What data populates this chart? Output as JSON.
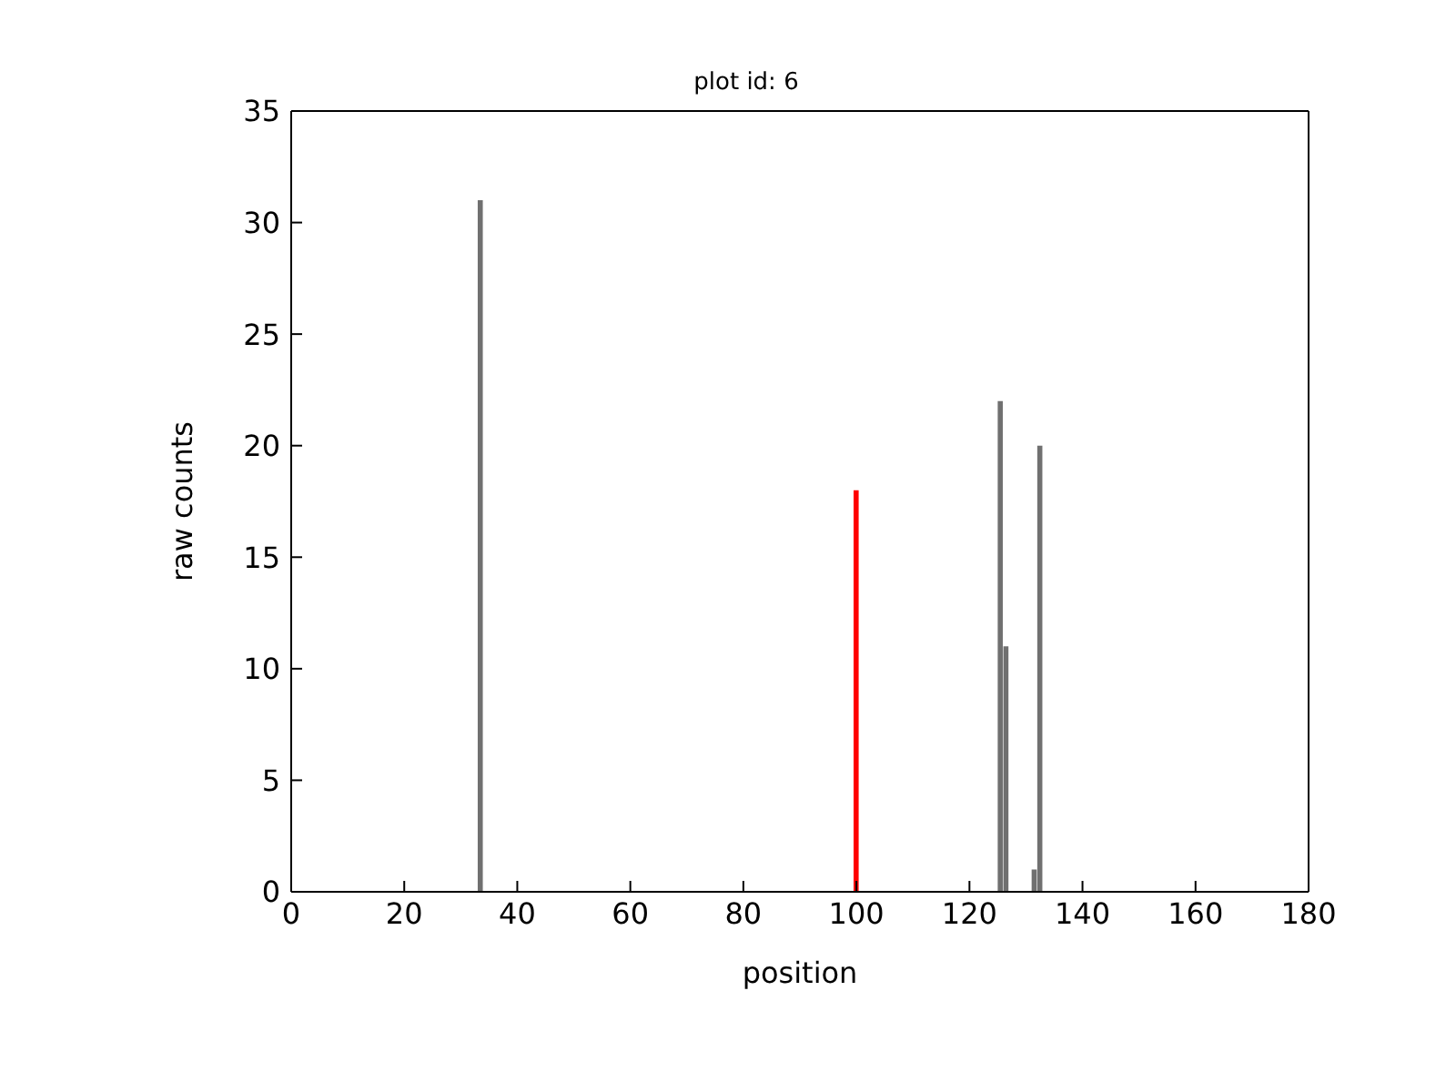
{
  "chart_data": {
    "type": "bar",
    "title": "plot id: 6",
    "xlabel": "position",
    "ylabel": "raw counts",
    "x": [
      33.5,
      100,
      125.5,
      126.5,
      131.5,
      132.5
    ],
    "values": [
      31,
      18,
      22,
      11,
      1,
      20
    ],
    "colors": [
      "#707070",
      "#ff0000",
      "#707070",
      "#707070",
      "#707070",
      "#707070"
    ],
    "xlim": [
      0,
      180
    ],
    "xticks": [
      0,
      20,
      40,
      60,
      80,
      100,
      120,
      140,
      160,
      180
    ],
    "ylim": [
      0,
      35
    ],
    "yticks": [
      0,
      5,
      10,
      15,
      20,
      25,
      30,
      35
    ],
    "grid": false
  }
}
